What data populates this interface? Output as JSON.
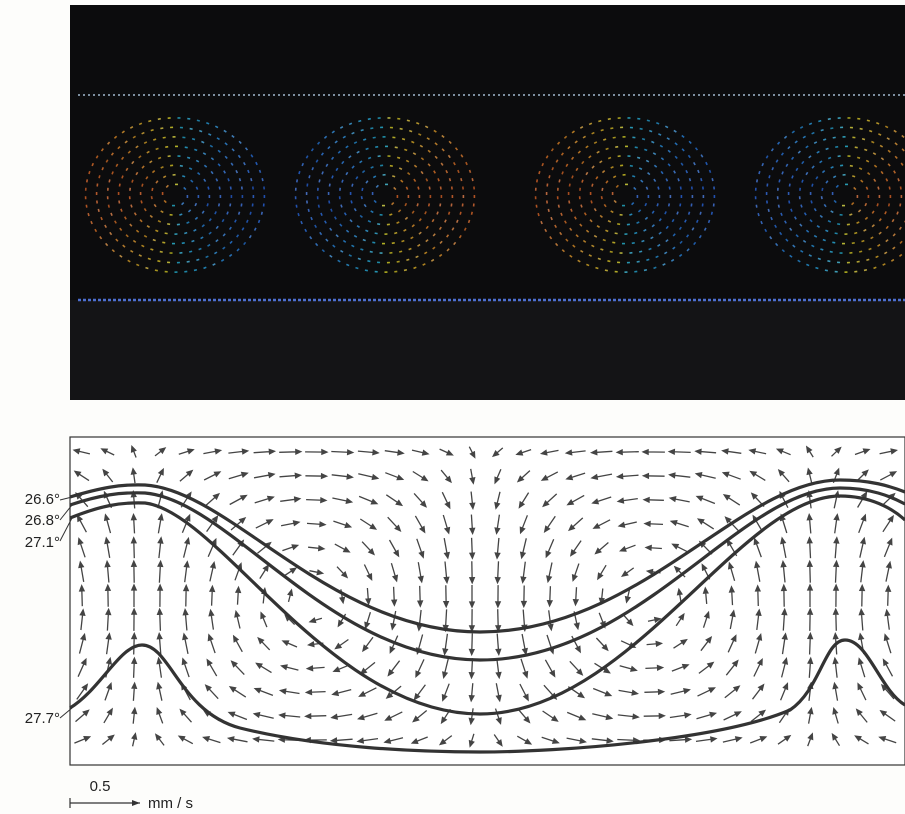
{
  "isotherms": [
    "26.6°",
    "26.8°",
    "27.1°",
    "27.7°"
  ],
  "scale": {
    "value": "0.5",
    "unit": "mm / s"
  }
}
